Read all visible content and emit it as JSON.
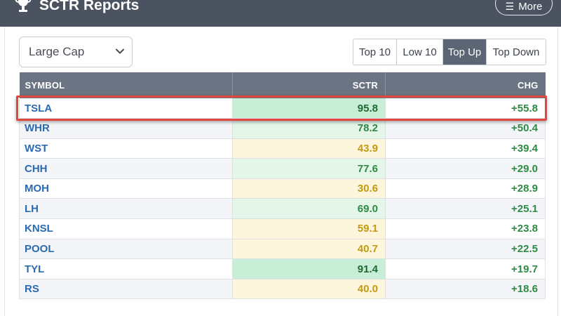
{
  "header": {
    "title": "SCTR Reports",
    "icon": "trophy-icon",
    "more_label": "More",
    "more_icon": "hamburger-icon"
  },
  "filter": {
    "selected": "Large Cap"
  },
  "tabs": [
    {
      "label": "Top 10",
      "active": false
    },
    {
      "label": "Low 10",
      "active": false
    },
    {
      "label": "Top Up",
      "active": true
    },
    {
      "label": "Top Down",
      "active": false
    }
  ],
  "table": {
    "columns": [
      "SYMBOL",
      "SCTR",
      "CHG"
    ],
    "rows": [
      {
        "symbol": "TSLA",
        "sctr": "95.8",
        "chg": "+55.8"
      },
      {
        "symbol": "WHR",
        "sctr": "78.2",
        "chg": "+50.4"
      },
      {
        "symbol": "WST",
        "sctr": "43.9",
        "chg": "+39.4"
      },
      {
        "symbol": "CHH",
        "sctr": "77.6",
        "chg": "+29.0"
      },
      {
        "symbol": "MOH",
        "sctr": "30.6",
        "chg": "+28.9"
      },
      {
        "symbol": "LH",
        "sctr": "69.0",
        "chg": "+25.1"
      },
      {
        "symbol": "KNSL",
        "sctr": "59.1",
        "chg": "+23.8"
      },
      {
        "symbol": "POOL",
        "sctr": "40.7",
        "chg": "+22.5"
      },
      {
        "symbol": "TYL",
        "sctr": "91.4",
        "chg": "+19.7"
      },
      {
        "symbol": "RS",
        "sctr": "40.0",
        "chg": "+18.6"
      }
    ],
    "highlighted_symbol": "TSLA"
  },
  "colors": {
    "header_bg": "#4b5260",
    "active_tab_bg": "#5c6573",
    "symbol_link": "#2a6bb0",
    "positive_change": "#2f8a43",
    "sctr_high_bg": "#c9eed8",
    "sctr_mid_bg": "#e4f5ea",
    "sctr_low_bg": "#fdf5dc",
    "highlight_border": "#e2473d"
  }
}
